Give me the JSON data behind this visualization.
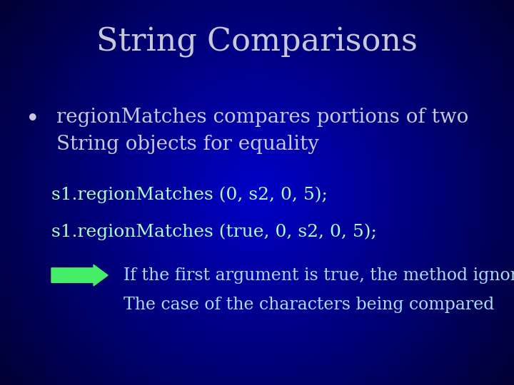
{
  "title": "String Comparisons",
  "title_color": "#c8c8d8",
  "title_fontsize": 32,
  "bg_color_center": "#0000dd",
  "bg_color_edge": "#000055",
  "bullet_text": "regionMatches compares portions of two\nString objects for equality",
  "bullet_color": "#c8c8d8",
  "bullet_fontsize": 20,
  "code_lines": [
    "s1.regionMatches (0, s2, 0, 5);",
    "s1.regionMatches (true, 0, s2, 0, 5);"
  ],
  "code_color": "#aaffcc",
  "code_fontsize": 18,
  "arrow_color": "#44ee66",
  "note_lines": [
    "If the first argument is true, the method ignores",
    "The case of the characters being compared"
  ],
  "note_color": "#aaddff",
  "note_fontsize": 17
}
